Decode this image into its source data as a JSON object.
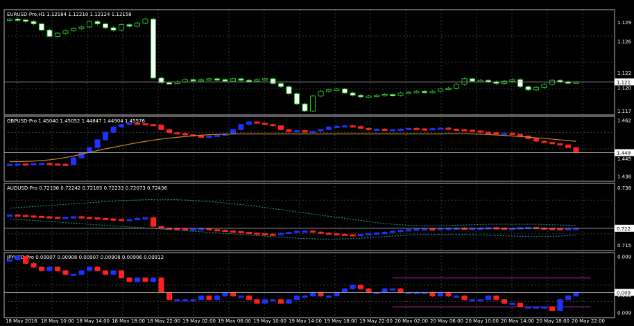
{
  "colors": {
    "background": "#000000",
    "grid": "#3a3a3a",
    "frame": "#b8b8b8",
    "bull_green": "#ffffff",
    "bear_green": "#ffffff",
    "bull_edge_green": "#1fc01f",
    "bull_blue": "#2030ff",
    "bear_red": "#ff2020",
    "ma_line": "#d08a1a",
    "envelope": "#1aa7a7",
    "rect": "#b020b0"
  },
  "chart_data": [
    {
      "type": "candlestick",
      "symbol": "EURUSD-Pro,H1",
      "header": "EURUSD-Pro,H1  1.12184 1.12210 1.12124 1.12158",
      "ylim": [
        1.1168,
        1.1302
      ],
      "y_ticks": [
        "1.129",
        "1.126",
        "1.122",
        "1.120",
        "1.117"
      ],
      "last_price": "1.121",
      "style": "green",
      "closes": [
        1.129,
        1.1289,
        1.1287,
        1.1284,
        1.1276,
        1.1268,
        1.1272,
        1.1275,
        1.1278,
        1.128,
        1.1287,
        1.1284,
        1.1279,
        1.1276,
        1.1283,
        1.1281,
        1.1285,
        1.129,
        1.1215,
        1.1209,
        1.1208,
        1.121,
        1.1213,
        1.1212,
        1.1213,
        1.1214,
        1.1213,
        1.1211,
        1.1214,
        1.1212,
        1.1211,
        1.1213,
        1.1214,
        1.1208,
        1.1204,
        1.1195,
        1.1182,
        1.1173,
        1.1192,
        1.1198,
        1.12,
        1.1201,
        1.1196,
        1.1193,
        1.1191,
        1.1192,
        1.1193,
        1.1194,
        1.1193,
        1.1196,
        1.1197,
        1.1198,
        1.1197,
        1.1198,
        1.1201,
        1.1202,
        1.1207,
        1.1214,
        1.1211,
        1.1212,
        1.121,
        1.1208,
        1.1211,
        1.1213,
        1.1204,
        1.12,
        1.1203,
        1.1207,
        1.1212,
        1.121,
        1.1209,
        1.121
      ]
    },
    {
      "type": "candlestick",
      "symbol": "GBPUSD-Pro",
      "header": "GBPUSD-Pro  1.45040 1.45052 1.44847 1.44904 1.45576",
      "ylim": [
        1.4378,
        1.4632
      ],
      "y_ticks": [
        "1.462",
        "1.445",
        "1.438"
      ],
      "last_price": "1.449",
      "style": "bluered",
      "ma_values": [
        1.4455,
        1.4455,
        1.4456,
        1.4457,
        1.4459,
        1.4462,
        1.4466,
        1.4471,
        1.4477,
        1.4484,
        1.4491,
        1.4498,
        1.4505,
        1.4511,
        1.4517,
        1.4523,
        1.4529,
        1.4534,
        1.4539,
        1.4543,
        1.4547,
        1.455,
        1.4553,
        1.4556,
        1.4558,
        1.456,
        1.4561,
        1.4562,
        1.4563,
        1.4563,
        1.4563,
        1.4563,
        1.4563,
        1.4563,
        1.4563,
        1.4563,
        1.4563,
        1.4563,
        1.4563,
        1.4563,
        1.4563,
        1.4563,
        1.4563,
        1.4563,
        1.4563,
        1.4563,
        1.4563,
        1.4563,
        1.4563,
        1.4563,
        1.4563,
        1.4563,
        1.4563,
        1.4563,
        1.4563,
        1.4564,
        1.4564,
        1.4564,
        1.4563,
        1.4562,
        1.4561,
        1.4559,
        1.4557,
        1.4555,
        1.4553,
        1.4551,
        1.4548,
        1.4546,
        1.4543,
        1.454,
        1.4537,
        1.4534
      ],
      "closes": [
        1.4445,
        1.4446,
        1.4445,
        1.4447,
        1.4448,
        1.4446,
        1.4445,
        1.4443,
        1.447,
        1.449,
        1.451,
        1.454,
        1.457,
        1.459,
        1.46,
        1.4605,
        1.4603,
        1.46,
        1.4598,
        1.458,
        1.4568,
        1.4565,
        1.456,
        1.4555,
        1.455,
        1.4555,
        1.4558,
        1.4563,
        1.458,
        1.46,
        1.461,
        1.4605,
        1.46,
        1.4595,
        1.458,
        1.4572,
        1.4576,
        1.457,
        1.4574,
        1.458,
        1.459,
        1.4593,
        1.4595,
        1.4592,
        1.4585,
        1.458,
        1.4582,
        1.4578,
        1.458,
        1.4582,
        1.4585,
        1.4583,
        1.458,
        1.4584,
        1.4586,
        1.4582,
        1.458,
        1.4578,
        1.4575,
        1.457,
        1.4568,
        1.4565,
        1.4566,
        1.4562,
        1.4555,
        1.4545,
        1.4535,
        1.453,
        1.4525,
        1.452,
        1.451,
        1.449
      ]
    },
    {
      "type": "candlestick",
      "symbol": "AUDUSD-Pro",
      "header": "AUDUSD-Pro  0.72196 0.72242 0.72185 0.72233 0.72073 0.72436",
      "ylim": [
        0.7142,
        0.7392
      ],
      "y_ticks": [
        "0.738",
        "0.722",
        "0.715"
      ],
      "last_price": "0.722",
      "style": "bluered",
      "env_upper": [
        0.73,
        0.7302,
        0.7304,
        0.7306,
        0.7308,
        0.731,
        0.7312,
        0.7314,
        0.7316,
        0.7318,
        0.732,
        0.7322,
        0.7324,
        0.7326,
        0.7328,
        0.7329,
        0.733,
        0.7331,
        0.7332,
        0.7332,
        0.7332,
        0.7331,
        0.733,
        0.7328,
        0.7326,
        0.7324,
        0.7322,
        0.7319,
        0.7316,
        0.7313,
        0.731,
        0.7306,
        0.7302,
        0.7298,
        0.7294,
        0.729,
        0.7286,
        0.7282,
        0.7278,
        0.7274,
        0.727,
        0.7266,
        0.7262,
        0.7258,
        0.7254,
        0.725,
        0.7246,
        0.7243,
        0.724,
        0.7238,
        0.7236,
        0.7235,
        0.7234,
        0.7234,
        0.7234,
        0.7235,
        0.7236,
        0.7237,
        0.7238,
        0.7239,
        0.724,
        0.724,
        0.724,
        0.724,
        0.724,
        0.724,
        0.724,
        0.7239,
        0.7238,
        0.7237,
        0.7236,
        0.7235
      ],
      "env_lower": [
        0.726,
        0.7258,
        0.7256,
        0.7254,
        0.7252,
        0.725,
        0.7248,
        0.7246,
        0.7244,
        0.7242,
        0.724,
        0.7238,
        0.7236,
        0.7234,
        0.7232,
        0.723,
        0.7228,
        0.7226,
        0.7224,
        0.7222,
        0.722,
        0.7218,
        0.7216,
        0.7214,
        0.7212,
        0.721,
        0.7208,
        0.7206,
        0.7204,
        0.7202,
        0.72,
        0.7198,
        0.7196,
        0.7194,
        0.7192,
        0.719,
        0.7188,
        0.7187,
        0.7186,
        0.7185,
        0.7185,
        0.7185,
        0.7186,
        0.7187,
        0.7188,
        0.719,
        0.7192,
        0.7194,
        0.7196,
        0.7198,
        0.72,
        0.7201,
        0.7202,
        0.7202,
        0.7202,
        0.7202,
        0.7202,
        0.7202,
        0.7201,
        0.72,
        0.7199,
        0.7198,
        0.7197,
        0.7196,
        0.7195,
        0.7194,
        0.7194,
        0.7194,
        0.7195,
        0.7196,
        0.7198,
        0.72
      ],
      "closes": [
        0.7275,
        0.7273,
        0.7271,
        0.727,
        0.7268,
        0.7266,
        0.7265,
        0.7266,
        0.7268,
        0.7266,
        0.7264,
        0.7262,
        0.726,
        0.7258,
        0.7256,
        0.7258,
        0.7262,
        0.7264,
        0.7232,
        0.7226,
        0.7225,
        0.7223,
        0.7221,
        0.7222,
        0.7224,
        0.722,
        0.7218,
        0.7215,
        0.7213,
        0.721,
        0.7207,
        0.7205,
        0.7203,
        0.7201,
        0.7206,
        0.721,
        0.7214,
        0.7215,
        0.7211,
        0.7207,
        0.7205,
        0.7203,
        0.7201,
        0.72,
        0.7202,
        0.7205,
        0.7208,
        0.721,
        0.7214,
        0.7217,
        0.722,
        0.7222,
        0.7223,
        0.7222,
        0.7224,
        0.7225,
        0.7226,
        0.7224,
        0.7225,
        0.7226,
        0.7227,
        0.7226,
        0.7224,
        0.7225,
        0.7227,
        0.7228,
        0.7226,
        0.7225,
        0.7224,
        0.7223,
        0.7224,
        0.7225
      ]
    },
    {
      "type": "candlestick",
      "symbol": "JPYUSD-Pro",
      "header": "JPYUSD-Pro  0.00907 0.00908 0.00907 0.00908 0.00906 0.00912",
      "ylim": [
        0.00897,
        0.00915
      ],
      "y_ticks": [
        "0.009",
        "0.009",
        "0.009"
      ],
      "last_price": "0.009",
      "style": "bluered",
      "closes": [
        0.00913,
        0.00914,
        0.00912,
        0.00911,
        0.0091,
        0.00911,
        0.0091,
        0.00909,
        0.00909,
        0.0091,
        0.00911,
        0.0091,
        0.00909,
        0.0091,
        0.00908,
        0.00907,
        0.00908,
        0.00907,
        0.00908,
        0.00904,
        0.00902,
        0.00902,
        0.00902,
        0.00902,
        0.00903,
        0.00902,
        0.00903,
        0.00904,
        0.00903,
        0.00903,
        0.00902,
        0.00901,
        0.00902,
        0.00902,
        0.00901,
        0.00902,
        0.00903,
        0.00903,
        0.00904,
        0.00903,
        0.00903,
        0.00904,
        0.00905,
        0.00906,
        0.00905,
        0.00904,
        0.00904,
        0.00905,
        0.00905,
        0.00904,
        0.00904,
        0.00904,
        0.00904,
        0.00903,
        0.00904,
        0.00903,
        0.00903,
        0.00902,
        0.00902,
        0.00902,
        0.00903,
        0.00902,
        0.00901,
        0.00901,
        0.009,
        0.009,
        0.009,
        0.009,
        0.00899,
        0.00902,
        0.00903,
        0.00904
      ],
      "rect_top": 0.00908,
      "rect_bottom": 0.009,
      "rect_start_index": 48
    }
  ],
  "x_axis_labels": [
    "18 May 2016",
    "18 May 10:00",
    "18 May 14:00",
    "18 May 18:00",
    "18 May 22:00",
    "19 May 02:00",
    "19 May 06:00",
    "19 May 10:00",
    "19 May 14:00",
    "19 May 18:00",
    "19 May 22:00",
    "20 May 02:00",
    "20 May 06:00",
    "20 May 10:00",
    "20 May 14:00",
    "20 May 18:00",
    "20 May 22:00"
  ]
}
